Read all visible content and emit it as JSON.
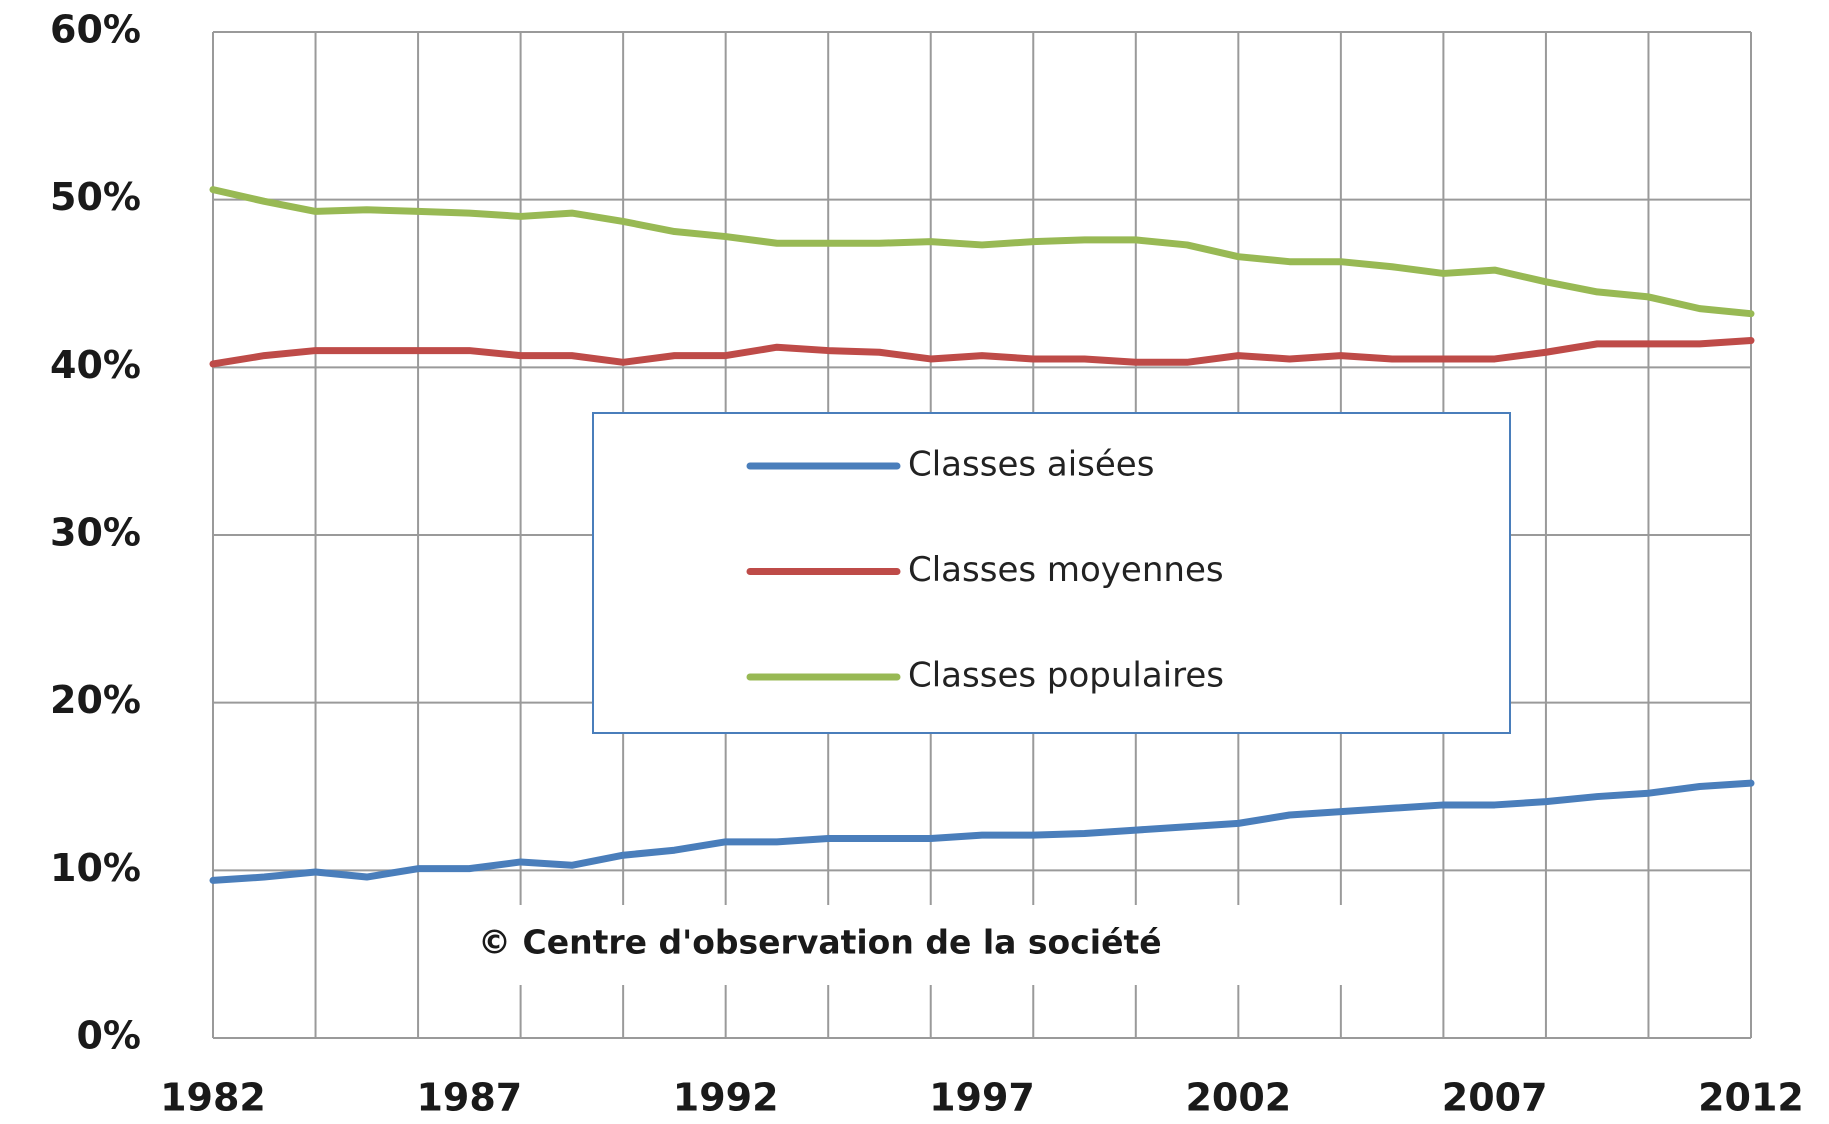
{
  "chart_data": {
    "type": "line",
    "x": [
      1982,
      1983,
      1984,
      1985,
      1986,
      1987,
      1988,
      1989,
      1990,
      1991,
      1992,
      1993,
      1994,
      1995,
      1996,
      1997,
      1998,
      1999,
      2000,
      2001,
      2002,
      2003,
      2004,
      2005,
      2006,
      2007,
      2008,
      2009,
      2010,
      2011,
      2012
    ],
    "series": [
      {
        "name": "Classes aisées",
        "color": "#4a7ebb",
        "values": [
          9.4,
          9.6,
          9.9,
          9.6,
          10.1,
          10.1,
          10.5,
          10.3,
          10.9,
          11.2,
          11.7,
          11.7,
          11.9,
          11.9,
          11.9,
          12.1,
          12.1,
          12.2,
          12.4,
          12.6,
          12.8,
          13.3,
          13.5,
          13.7,
          13.9,
          13.9,
          14.1,
          14.4,
          14.6,
          15.0,
          15.2
        ]
      },
      {
        "name": "Classes moyennes",
        "color": "#be4b48",
        "values": [
          40.2,
          40.7,
          41.0,
          41.0,
          41.0,
          41.0,
          40.7,
          40.7,
          40.3,
          40.7,
          40.7,
          41.2,
          41.0,
          40.9,
          40.5,
          40.7,
          40.5,
          40.5,
          40.3,
          40.3,
          40.7,
          40.5,
          40.7,
          40.5,
          40.5,
          40.5,
          40.9,
          41.4,
          41.4,
          41.4,
          41.6
        ]
      },
      {
        "name": "Classes populaires",
        "color": "#98b954",
        "values": [
          50.6,
          49.9,
          49.3,
          49.4,
          49.3,
          49.2,
          49.0,
          49.2,
          48.7,
          48.1,
          47.8,
          47.4,
          47.4,
          47.4,
          47.5,
          47.3,
          47.5,
          47.6,
          47.6,
          47.3,
          46.6,
          46.3,
          46.3,
          46.0,
          45.6,
          45.8,
          45.1,
          44.5,
          44.2,
          43.5,
          43.2
        ]
      }
    ],
    "xlim": [
      1982,
      2012
    ],
    "xticks": [
      1982,
      1987,
      1992,
      1997,
      2002,
      2007,
      2012
    ],
    "xgrid": [
      1982,
      1984,
      1986,
      1988,
      1990,
      1992,
      1994,
      1996,
      1998,
      2000,
      2002,
      2004,
      2006,
      2008,
      2010,
      2012
    ],
    "ylim": [
      0,
      60
    ],
    "yticks": [
      {
        "value": 0,
        "label": "0%"
      },
      {
        "value": 10,
        "label": "10%"
      },
      {
        "value": 20,
        "label": "20%"
      },
      {
        "value": 30,
        "label": "30%"
      },
      {
        "value": 40,
        "label": "40%"
      },
      {
        "value": 50,
        "label": "50%"
      },
      {
        "value": 60,
        "label": "60%"
      }
    ],
    "grid": true,
    "annotation": "© Centre d'observation de la société"
  }
}
